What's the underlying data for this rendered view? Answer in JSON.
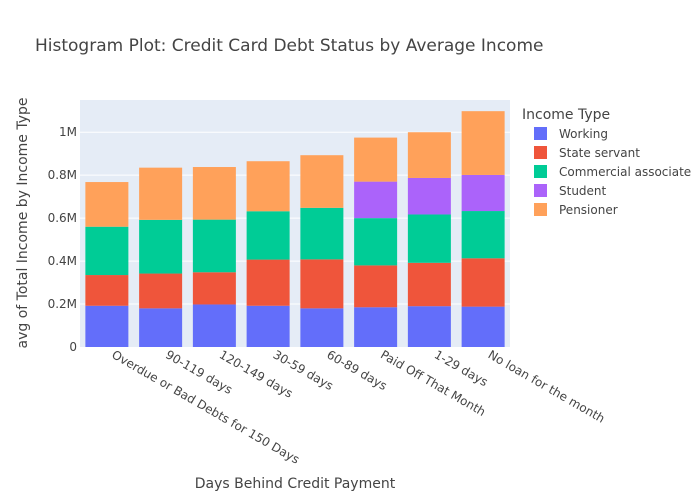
{
  "chart_data": {
    "type": "bar",
    "stacked": true,
    "title": "Histogram Plot: Credit Card Debt Status by Average Income",
    "xlabel": "Days Behind Credit Payment",
    "ylabel": "avg of Total Income by Income Type",
    "ylim": [
      0,
      1150000
    ],
    "yticks": [
      {
        "value": 0,
        "label": "0"
      },
      {
        "value": 200000,
        "label": "0.2M"
      },
      {
        "value": 400000,
        "label": "0.4M"
      },
      {
        "value": 600000,
        "label": "0.6M"
      },
      {
        "value": 800000,
        "label": "0.8M"
      },
      {
        "value": 1000000,
        "label": "1M"
      }
    ],
    "grid": true,
    "legend_title": "Income Type",
    "legend_position": "right",
    "categories": [
      "Overdue or Bad Debts for 150 Days",
      "90-119 days",
      "120-149 days",
      "30-59 days",
      "60-89 days",
      "Paid Off That Month",
      "1-29 days",
      "No loan for the month"
    ],
    "series": [
      {
        "name": "Working",
        "color": "#636efa",
        "values": [
          192000,
          180000,
          198000,
          192000,
          180000,
          185000,
          190000,
          188000
        ]
      },
      {
        "name": "State servant",
        "color": "#ef553b",
        "values": [
          143000,
          162000,
          150000,
          215000,
          228000,
          195000,
          202000,
          225000
        ]
      },
      {
        "name": "Commercial associate",
        "color": "#00cc96",
        "values": [
          225000,
          250000,
          245000,
          225000,
          240000,
          220000,
          225000,
          220000
        ]
      },
      {
        "name": "Student",
        "color": "#ab63fa",
        "values": [
          0,
          0,
          0,
          0,
          0,
          170000,
          170000,
          168000
        ]
      },
      {
        "name": "Pensioner",
        "color": "#ffa15a",
        "values": [
          208000,
          243000,
          245000,
          233000,
          245000,
          205000,
          213000,
          297000
        ]
      }
    ]
  }
}
